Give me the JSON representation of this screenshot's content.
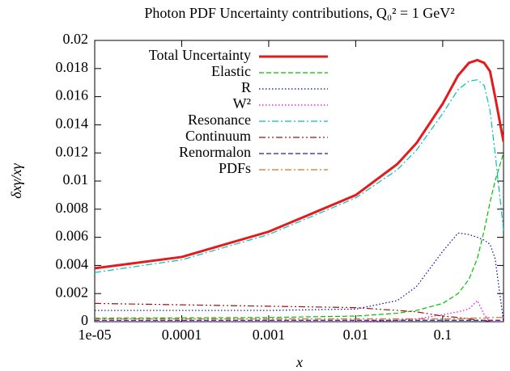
{
  "chart_data": {
    "type": "line",
    "title": "Photon PDF Uncertainty contributions, Q₀² = 1 GeV²",
    "x_label": "x",
    "y_label": "δxγ/xγ",
    "xscale": "log",
    "xlim": [
      1e-05,
      0.5
    ],
    "xticks": [
      {
        "value": 1e-05,
        "label": "1e-05"
      },
      0.0001,
      0.001,
      0.01,
      0.1
    ],
    "ylim": [
      0,
      0.02
    ],
    "yticks": [
      0,
      0.002,
      0.004,
      0.006,
      0.008,
      0.01,
      0.012,
      0.014,
      0.016,
      0.018,
      0.02
    ],
    "legend": "top left",
    "x": [
      1e-05,
      0.0001,
      0.001,
      0.01,
      0.03,
      0.05,
      0.1,
      0.15,
      0.2,
      0.25,
      0.3,
      0.35,
      0.4,
      0.5
    ],
    "series": [
      {
        "name": "Total Uncertainty",
        "color": "#e41a1c",
        "style": "solid",
        "values": [
          0.0038,
          0.0046,
          0.0064,
          0.009,
          0.0112,
          0.0127,
          0.0155,
          0.0175,
          0.0184,
          0.0186,
          0.0184,
          0.0178,
          0.016,
          0.0128
        ]
      },
      {
        "name": "Elastic",
        "color": "#00c000",
        "style": "dashed",
        "values": [
          0.00025,
          0.00027,
          0.0003,
          0.0004,
          0.0006,
          0.0008,
          0.0013,
          0.002,
          0.003,
          0.0045,
          0.0065,
          0.0085,
          0.01,
          0.012
        ]
      },
      {
        "name": "R",
        "color": "#0000c0",
        "style": "dotted",
        "values": [
          0.0008,
          0.0008,
          0.0008,
          0.0009,
          0.0015,
          0.0025,
          0.005,
          0.0063,
          0.0062,
          0.006,
          0.0058,
          0.0055,
          0.0045,
          0.0
        ]
      },
      {
        "name": "W²",
        "color": "#e000e0",
        "style": "dotted",
        "values": [
          0.0,
          0.0,
          0.0,
          0.0,
          0.0001,
          0.0002,
          0.0005,
          0.0007,
          0.0009,
          0.0015,
          0.0005,
          0.0,
          0.0,
          0.0
        ]
      },
      {
        "name": "Resonance",
        "color": "#00c0c0",
        "style": "dashdot",
        "values": [
          0.0035,
          0.0044,
          0.0062,
          0.0088,
          0.0108,
          0.0122,
          0.0148,
          0.0165,
          0.0171,
          0.0172,
          0.0168,
          0.015,
          0.012,
          0.0065
        ]
      },
      {
        "name": "Continuum",
        "color": "#a01010",
        "style": "dashdotdot",
        "values": [
          0.0013,
          0.0012,
          0.0011,
          0.001,
          0.0008,
          0.0007,
          0.0004,
          0.0003,
          0.0002,
          0.0001,
          0.0001,
          0.0,
          0.0,
          0.0
        ]
      },
      {
        "name": "Renormalon",
        "color": "#2020a0",
        "style": "dashed",
        "values": [
          0.0001,
          0.0001,
          0.0001,
          0.0001,
          0.0001,
          0.0001,
          0.0001,
          0.0001,
          0.0001,
          0.0001,
          0.0001,
          0.0001,
          0.0001,
          0.0001
        ]
      },
      {
        "name": "PDFs",
        "color": "#e07020",
        "style": "dashdot",
        "values": [
          0.0002,
          0.0002,
          0.0002,
          0.0002,
          0.0002,
          0.0002,
          0.0002,
          0.0002,
          0.00025,
          0.00025,
          0.00025,
          0.0003,
          0.0003,
          0.0003
        ]
      }
    ]
  }
}
